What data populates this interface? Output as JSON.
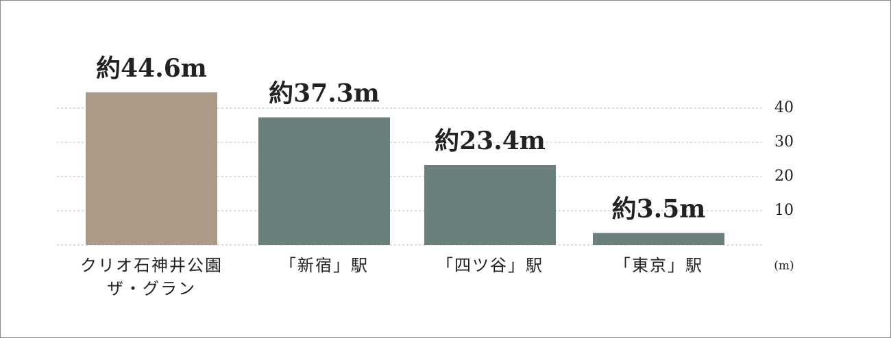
{
  "chart_data": {
    "type": "bar",
    "categories": [
      "クリオ石神井公園\nザ・グラン",
      "「新宿」駅",
      "「四ツ谷」駅",
      "「東京」駅"
    ],
    "values": [
      44.6,
      37.3,
      23.4,
      3.5
    ],
    "value_labels": [
      "約44.6m",
      "約37.3m",
      "約23.4m",
      "約3.5m"
    ],
    "colors": [
      "#ab9a86",
      "#6b7f7d",
      "#6b7f7d",
      "#6b7f7d"
    ],
    "ylim": [
      0,
      50
    ],
    "yticks": [
      10,
      20,
      30,
      40
    ],
    "y_axis_label": "(m)",
    "grid": true
  }
}
